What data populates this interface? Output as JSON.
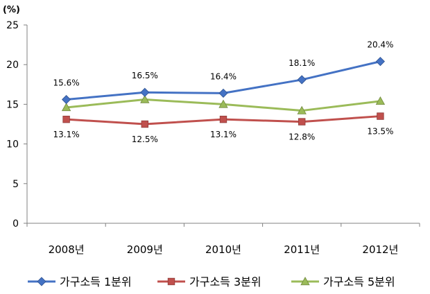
{
  "chart_data": {
    "type": "line",
    "title": "",
    "xlabel": "",
    "ylabel": "",
    "unit_label": "(%)",
    "categories": [
      "2008년",
      "2009년",
      "2010년",
      "2011년",
      "2012년"
    ],
    "ylim": [
      0,
      25
    ],
    "yticks": [
      0,
      5,
      10,
      15,
      20,
      25
    ],
    "grid": false,
    "legend_position": "bottom",
    "series": [
      {
        "name": "가구소득 1분위",
        "color": "#4472C4",
        "marker": "diamond",
        "values": [
          15.6,
          16.5,
          16.4,
          18.1,
          20.4
        ],
        "labels": [
          "15.6%",
          "16.5%",
          "16.4%",
          "18.1%",
          "20.4%"
        ],
        "label_position": "above"
      },
      {
        "name": "가구소득 3분위",
        "color": "#C0504D",
        "marker": "square",
        "values": [
          13.1,
          12.5,
          13.1,
          12.8,
          13.5
        ],
        "labels": [
          "13.1%",
          "12.5%",
          "13.1%",
          "12.8%",
          "13.5%"
        ],
        "label_position": "below"
      },
      {
        "name": "가구소득 5분위",
        "color": "#9BBB59",
        "marker": "triangle",
        "values": [
          14.6,
          15.6,
          15.0,
          14.2,
          15.4
        ],
        "labels": [],
        "label_position": "none"
      }
    ]
  }
}
